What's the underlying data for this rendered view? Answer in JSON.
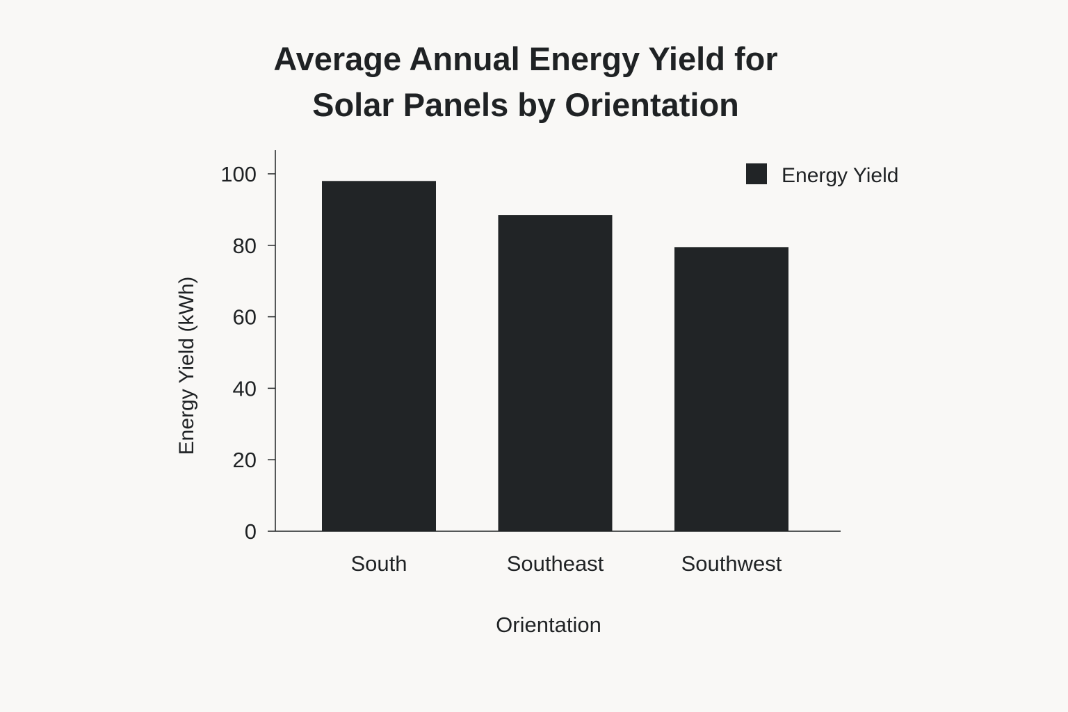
{
  "chart_data": {
    "type": "bar",
    "title_lines": [
      "Average Annual Energy Yield for",
      "Solar Panels by Orientation"
    ],
    "categories": [
      "South",
      "Southeast",
      "Southwest"
    ],
    "series": [
      {
        "name": "Energy Yield",
        "values": [
          98,
          88.5,
          79.5
        ]
      }
    ],
    "xlabel": "Orientation",
    "ylabel": "Energy Yield (kWh)",
    "ylim": [
      0,
      100
    ],
    "yticks": [
      "0",
      "20",
      "40",
      "60",
      "80",
      "100"
    ],
    "grid": false,
    "legend_position": "top-right",
    "colors": {
      "bar": "#212426",
      "background": "#f9f8f6"
    }
  }
}
